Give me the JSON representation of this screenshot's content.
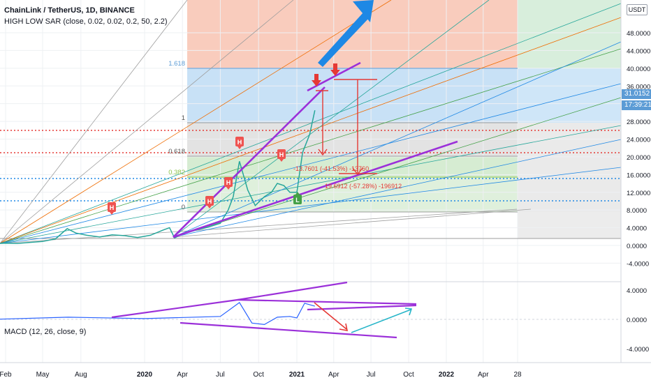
{
  "header": {
    "title": "ChainLink / TetherUS, 1D, BINANCE",
    "indicator": "HIGH LOW SAR  (close, 0.02, 0.02, 0.2, 50, 2.2)",
    "macd_label": "MACD (12, 26, close, 9)",
    "currency": "USDT"
  },
  "price_axis": {
    "current_price": "31.0152",
    "countdown": "17:39:21"
  },
  "fib_labels": [
    "1.618",
    "1",
    "0.618",
    "0.382",
    "0"
  ],
  "measure_labels": [
    "-13.7601 (-41.53%) -13760",
    "19.6912 (-57.28%) -196912"
  ],
  "colors": {
    "purple": "#9b30d9",
    "red": "#e53935",
    "blue_arrow": "#1e88e5",
    "teal_arrow": "#26b5c9",
    "up_candle": "#26a69a",
    "down_candle": "#ef5350",
    "fib_text": "#5b9bd5"
  },
  "chart_data": [
    {
      "type": "line",
      "title": "ChainLink / TetherUS, 1D, BINANCE",
      "x_ticks": [
        "Feb",
        "May",
        "Aug",
        "2020",
        "Apr",
        "Jul",
        "Oct",
        "2021",
        "Apr",
        "Jul",
        "Oct",
        "2022",
        "Apr",
        "28"
      ],
      "y_ticks": [
        "48.0000",
        "44.0000",
        "40.0000",
        "36.0000",
        "32.0000",
        "28.0000",
        "24.0000",
        "20.0000",
        "16.0000",
        "12.0000",
        "8.0000",
        "4.0000",
        "0.0000",
        "-4.0000"
      ],
      "ylim": [
        -6,
        52
      ],
      "series": [
        {
          "x": [
            "2019-01-01",
            "2019-02-01",
            "2019-03-01",
            "2019-04-01",
            "2019-05-01",
            "2019-06-01",
            "2019-06-29",
            "2019-07-20",
            "2019-08-15",
            "2019-09-15",
            "2019-10-15",
            "2019-11-15",
            "2019-12-15",
            "2020-01-15",
            "2020-02-15",
            "2020-03-01",
            "2020-03-13",
            "2020-04-01",
            "2020-05-01",
            "2020-06-01",
            "2020-07-01",
            "2020-07-20",
            "2020-08-01",
            "2020-08-16",
            "2020-09-05",
            "2020-09-23",
            "2020-10-15",
            "2020-11-01",
            "2020-11-15",
            "2020-12-01",
            "2020-12-15",
            "2021-01-01",
            "2021-01-15",
            "2021-02-01",
            "2021-02-14"
          ],
          "values": [
            0.4,
            0.5,
            0.45,
            0.7,
            0.9,
            1.5,
            3.8,
            2.8,
            2.3,
            1.9,
            2.4,
            2.2,
            1.8,
            2.3,
            3.5,
            4.0,
            1.7,
            2.6,
            3.4,
            4.1,
            5.0,
            8.0,
            11.0,
            19.0,
            12.5,
            9.0,
            11.0,
            12.0,
            14.0,
            13.5,
            12.0,
            12.0,
            21.0,
            25.0,
            30.5
          ]
        }
      ]
    },
    {
      "type": "line",
      "title": "MACD (12, 26, close, 9)",
      "y_ticks": [
        "4.0000",
        "0.0000",
        "-4.0000"
      ],
      "ylim": [
        -6,
        5
      ],
      "series": [
        {
          "x": [
            "2019-01-01",
            "2019-07-01",
            "2020-01-01",
            "2020-07-01",
            "2020-08-16",
            "2020-09-15",
            "2020-10-15",
            "2020-11-15",
            "2020-12-15",
            "2021-01-01",
            "2021-01-20",
            "2021-02-14"
          ],
          "values": [
            0.0,
            0.3,
            0.1,
            0.4,
            2.3,
            -0.5,
            -0.7,
            0.3,
            0.4,
            0.2,
            2.2,
            1.8
          ]
        }
      ]
    }
  ]
}
